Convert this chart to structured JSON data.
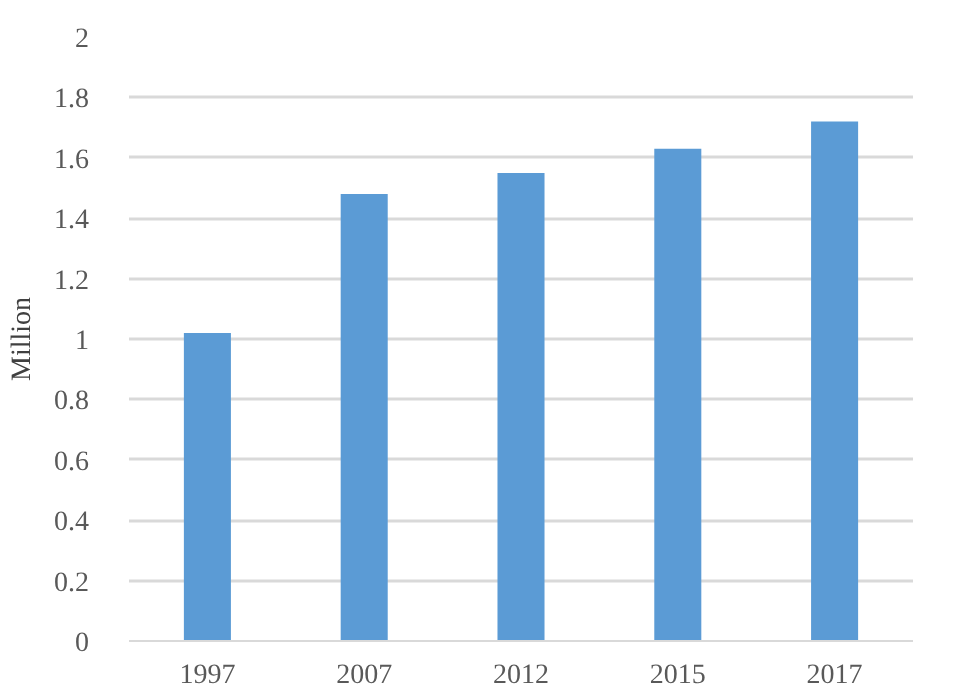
{
  "chart_data": {
    "type": "bar",
    "ylabel": "Million",
    "categories": [
      "1997",
      "2007",
      "2012",
      "2015",
      "2017"
    ],
    "values": [
      1.02,
      1.48,
      1.55,
      1.63,
      1.72
    ],
    "color": "#5b9bd5",
    "ylim": [
      0,
      2
    ],
    "yticks": [
      0,
      0.2,
      0.4,
      0.6,
      0.8,
      1,
      1.2,
      1.4,
      1.6,
      1.8,
      2
    ],
    "grid": "y"
  }
}
